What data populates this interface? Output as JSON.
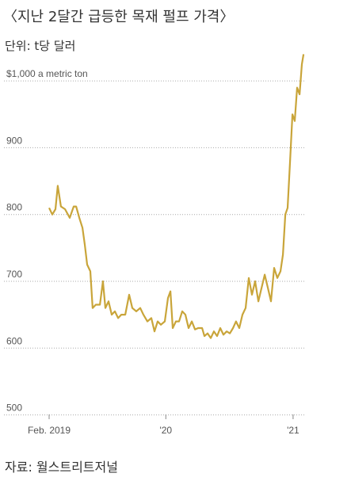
{
  "chart_data": {
    "type": "line",
    "title": "〈지난 2달간 급등한 목재 펄프 가격〉",
    "subtitle": "단위: t당 달러",
    "source": "자료: 월스트리트저널",
    "x": [
      2019.083,
      2019.108,
      2019.133,
      2019.151,
      2019.176,
      2019.208,
      2019.245,
      2019.276,
      2019.295,
      2019.32,
      2019.345,
      2019.363,
      2019.382,
      2019.407,
      2019.425,
      2019.45,
      2019.482,
      2019.506,
      2019.525,
      2019.55,
      2019.575,
      2019.6,
      2019.625,
      2019.65,
      2019.681,
      2019.712,
      2019.737,
      2019.768,
      2019.799,
      2019.824,
      2019.855,
      2019.886,
      2019.911,
      2019.936,
      2019.961,
      2019.992,
      2020.017,
      2020.036,
      2020.054,
      2020.079,
      2020.104,
      2020.129,
      2020.154,
      2020.179,
      2020.204,
      2020.229,
      2020.254,
      2020.285,
      2020.303,
      2020.328,
      2020.353,
      2020.378,
      2020.403,
      2020.428,
      2020.453,
      2020.478,
      2020.503,
      2020.528,
      2020.552,
      2020.577,
      2020.602,
      2020.627,
      2020.652,
      2020.677,
      2020.702,
      2020.727,
      2020.752,
      2020.777,
      2020.802,
      2020.826,
      2020.851,
      2020.876,
      2020.901,
      2020.92,
      2020.939,
      2020.957,
      2020.976,
      2020.995,
      2021.013,
      2021.032,
      2021.051,
      2021.069,
      2021.082
    ],
    "series": [
      {
        "color": "#c9a53a",
        "values": [
          810,
          800,
          808,
          843,
          812,
          808,
          795,
          812,
          812,
          795,
          780,
          755,
          725,
          715,
          660,
          665,
          665,
          700,
          660,
          670,
          650,
          655,
          645,
          650,
          650,
          680,
          660,
          655,
          660,
          650,
          640,
          645,
          625,
          640,
          635,
          640,
          675,
          685,
          630,
          640,
          640,
          655,
          650,
          630,
          640,
          628,
          630,
          630,
          618,
          622,
          615,
          625,
          618,
          630,
          620,
          625,
          622,
          630,
          640,
          630,
          650,
          660,
          705,
          680,
          700,
          670,
          690,
          710,
          690,
          670,
          720,
          705,
          715,
          740,
          800,
          810,
          880,
          950,
          940,
          990,
          980,
          1025,
          1040
        ]
      }
    ],
    "xlim": [
      2019.083,
      2021.15
    ],
    "xticks": [
      {
        "value": 2019.083,
        "label": "Feb. 2019"
      },
      {
        "value": 2020,
        "label": "'20"
      },
      {
        "value": 2021,
        "label": "'21"
      }
    ],
    "ylim": [
      490,
      1050
    ],
    "yticks": [
      500,
      600,
      700,
      800,
      900,
      {
        "value": 1000,
        "label": "$1,000 a metric ton"
      }
    ],
    "grid": true
  }
}
